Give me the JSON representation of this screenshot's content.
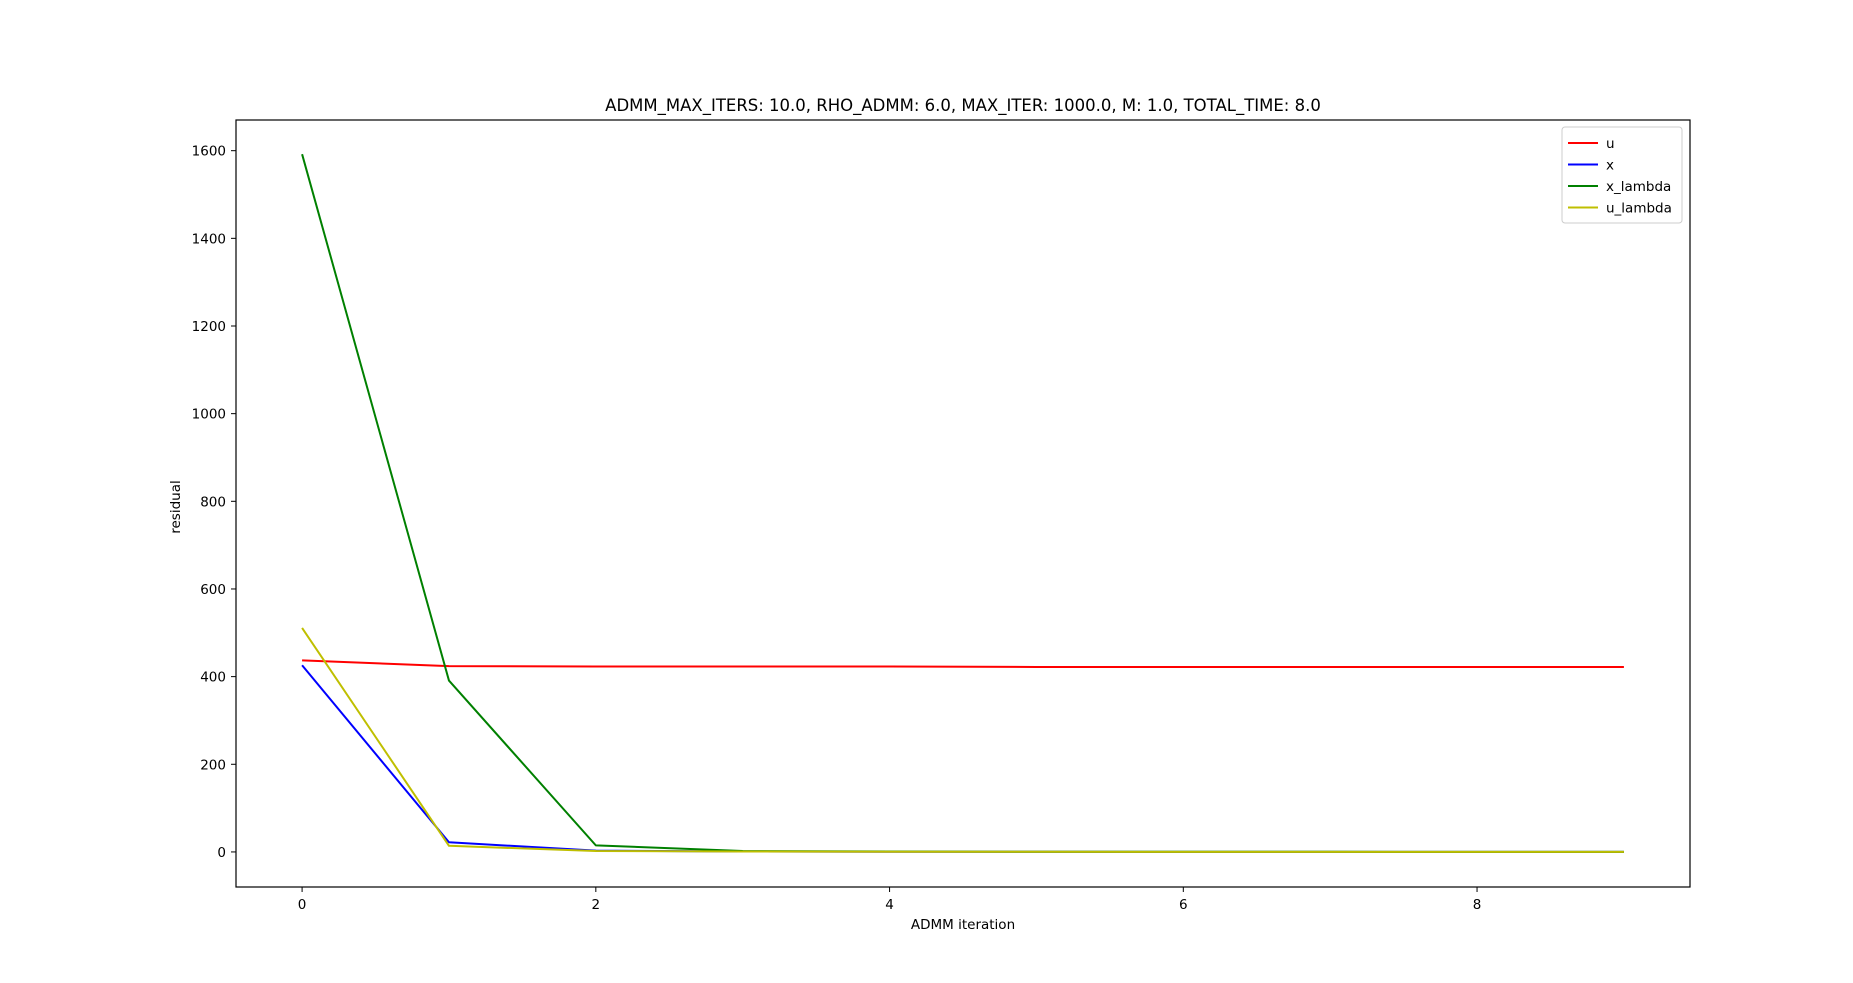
{
  "chart_data": {
    "type": "line",
    "title": "ADMM_MAX_ITERS: 10.0, RHO_ADMM: 6.0, MAX_ITER: 1000.0, M: 1.0, TOTAL_TIME: 8.0",
    "xlabel": "ADMM iteration",
    "ylabel": "residual",
    "x": [
      0,
      1,
      2,
      3,
      4,
      5,
      6,
      7,
      8,
      9
    ],
    "xlim": [
      -0.45,
      9.45
    ],
    "ylim": [
      -80,
      1670
    ],
    "xticks": [
      0,
      2,
      4,
      6,
      8
    ],
    "yticks": [
      0,
      200,
      400,
      600,
      800,
      1000,
      1200,
      1400,
      1600
    ],
    "grid": false,
    "legend_position": "top-right",
    "series": [
      {
        "name": "u",
        "color": "#ff0000",
        "values": [
          437,
          424,
          423,
          423,
          423,
          422,
          422,
          422,
          422,
          422
        ]
      },
      {
        "name": "x",
        "color": "#0000ff",
        "values": [
          426,
          22,
          3,
          1,
          0.5,
          0.3,
          0.2,
          0.2,
          0.1,
          0.1
        ]
      },
      {
        "name": "x_lambda",
        "color": "#008000",
        "values": [
          1592,
          391,
          15,
          2,
          1,
          0.5,
          0.3,
          0.3,
          0.2,
          0.2
        ]
      },
      {
        "name": "u_lambda",
        "color": "#bfbf00",
        "values": [
          511,
          14,
          2,
          1,
          0.5,
          0.3,
          0.2,
          0.2,
          0.1,
          0.1
        ]
      }
    ]
  }
}
